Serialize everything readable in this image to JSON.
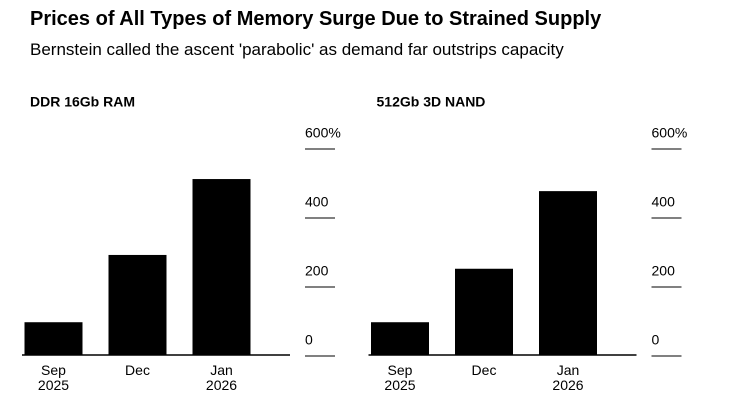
{
  "title": "Prices of All Types of Memory Surge Due to Strained Supply",
  "subtitle": "Bernstein called the ascent 'parabolic' as demand far outstrips capacity",
  "chart_data": [
    {
      "type": "bar",
      "title": "DDR 16Gb RAM",
      "categories": [
        "Sep\n2025",
        "Dec",
        "Jan\n2026"
      ],
      "values": [
        95,
        290,
        510
      ],
      "color": "#000000",
      "ylim": [
        0,
        600
      ],
      "yticks": [
        0,
        200,
        400,
        {
          "value": 600,
          "label": "600%"
        }
      ]
    },
    {
      "type": "bar",
      "title": "512Gb 3D NAND",
      "categories": [
        "Sep\n2025",
        "Dec",
        "Jan\n2026"
      ],
      "values": [
        95,
        250,
        475
      ],
      "color": "#000000",
      "ylim": [
        0,
        600
      ],
      "yticks": [
        0,
        200,
        400,
        {
          "value": 600,
          "label": "600%"
        }
      ]
    }
  ]
}
